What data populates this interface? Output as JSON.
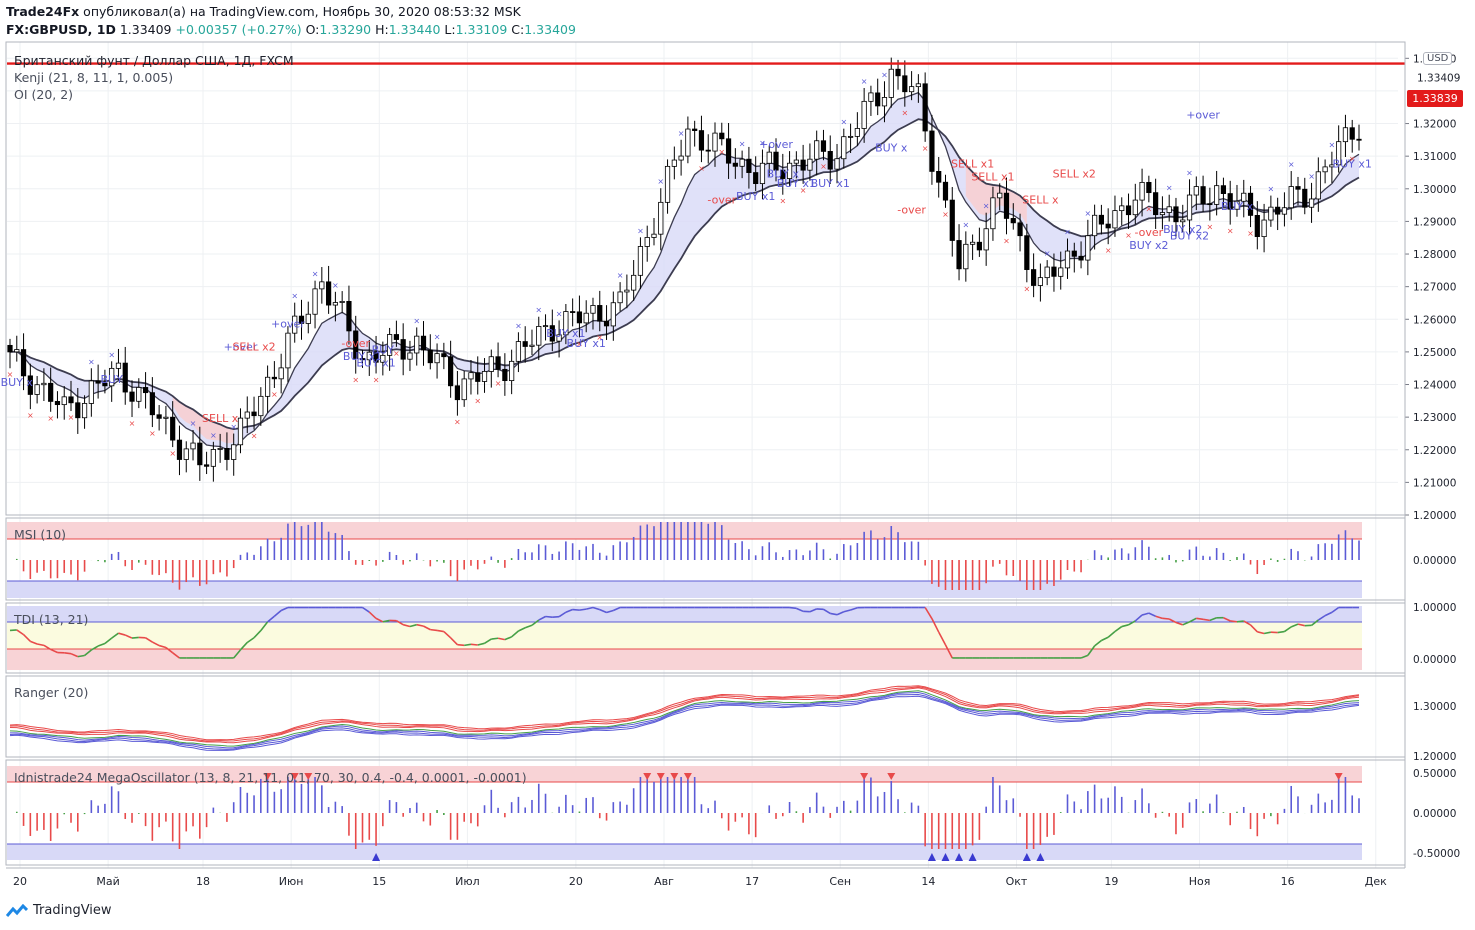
{
  "header": {
    "author": "Trade24Fx",
    "published_text": "опубликовал(а) на TradingView.com, Ноябрь 30, 2020 08:53:32 MSK",
    "symbol": "FX:GBPUSD, 1D",
    "last": "1.33409",
    "change": "+0.00357 (+0.27%)",
    "o_label": "O:",
    "o": "1.33290",
    "h_label": "H:",
    "h": "1.33440",
    "l_label": "L:",
    "l": "1.33109",
    "c_label": "C:",
    "c": "1.33409"
  },
  "legend": {
    "main_title": "Британский фунт / Доллар США, 1Д, FXCM",
    "ind1": "Kenji (21, 8, 11, 1, 0.005)",
    "ind2": "OI (20, 2)"
  },
  "currency_button": "USD",
  "horizontal_line_price": "1.33839",
  "current_price": "1.33409",
  "colors": {
    "up_candle": "#ffffff",
    "down_candle": "#000000",
    "hline": "#e31b1b",
    "blue": "#5b5bd6",
    "red": "#e84a4a",
    "green": "#46a046"
  },
  "x_axis_labels": [
    "20",
    "Май",
    "18",
    "Июн",
    "15",
    "Июл",
    "20",
    "Авг",
    "17",
    "Сен",
    "14",
    "Окт",
    "19",
    "Ноя",
    "16",
    "Дек"
  ],
  "price_axis": {
    "main_ticks": [
      "1.34000",
      "1.32000",
      "1.31000",
      "1.30000",
      "1.29000",
      "1.28000",
      "1.27000",
      "1.26000",
      "1.25000",
      "1.24000",
      "1.23000",
      "1.22000",
      "1.21000",
      "1.20000"
    ],
    "main_range": [
      1.2,
      1.345
    ]
  },
  "panels": {
    "msi": {
      "title": "MSI (10)",
      "ticks": [
        "0.00000"
      ]
    },
    "tdi": {
      "title": "TDI (13, 21)",
      "ticks": [
        "1.00000",
        "0.00000"
      ]
    },
    "ranger": {
      "title": "Ranger (20)",
      "ticks": [
        "1.30000",
        "1.20000"
      ]
    },
    "mega": {
      "title": "Idnistrade24 MegaOscillator (13, 8, 21, 11, 0.1, 70, 30, 0.4, -0.4, 0.0001, -0.0001)",
      "ticks": [
        "0.50000",
        "0.00000",
        "-0.50000"
      ]
    }
  },
  "signal_labels": [
    {
      "text": "BUY x",
      "bar": 1,
      "price": 1.2395
    },
    {
      "text": "BUY",
      "bar": 15,
      "price": 1.2405
    },
    {
      "text": "+over",
      "bar": 34,
      "price": 1.2505
    },
    {
      "text": "SELL x2",
      "bar": 36,
      "price": 1.2505
    },
    {
      "text": "SELL x",
      "bar": 31,
      "price": 1.2285
    },
    {
      "text": "+over",
      "bar": 41,
      "price": 1.2575
    },
    {
      "text": "-over",
      "bar": 51,
      "price": 1.2515
    },
    {
      "text": "BUY x1",
      "bar": 52,
      "price": 1.2475
    },
    {
      "text": "BUY x1",
      "bar": 54,
      "price": 1.2455
    },
    {
      "text": "BUY",
      "bar": 55,
      "price": 1.2495
    },
    {
      "text": "BUY x1",
      "bar": 82,
      "price": 1.2545
    },
    {
      "text": "BUY x1",
      "bar": 85,
      "price": 1.2515
    },
    {
      "text": "+over",
      "bar": 113,
      "price": 1.3125
    },
    {
      "text": "-over",
      "bar": 105,
      "price": 1.2955
    },
    {
      "text": "BUY x1",
      "bar": 110,
      "price": 1.2965
    },
    {
      "text": "BUY x",
      "bar": 114,
      "price": 1.3035
    },
    {
      "text": "BUY x1",
      "bar": 116,
      "price": 1.3005
    },
    {
      "text": "BUY x1",
      "bar": 121,
      "price": 1.3005
    },
    {
      "text": "BUY x",
      "bar": 130,
      "price": 1.3115
    },
    {
      "text": "-over",
      "bar": 133,
      "price": 1.2925
    },
    {
      "text": "SELL x1",
      "bar": 142,
      "price": 1.3065
    },
    {
      "text": "SELL x1",
      "bar": 145,
      "price": 1.3025
    },
    {
      "text": "SELL x",
      "bar": 152,
      "price": 1.2955
    },
    {
      "text": "SELL x2",
      "bar": 157,
      "price": 1.3035
    },
    {
      "text": "-over",
      "bar": 168,
      "price": 1.2855
    },
    {
      "text": "BUY x2",
      "bar": 168,
      "price": 1.2815
    },
    {
      "text": "BUY x2",
      "bar": 174,
      "price": 1.2845
    },
    {
      "text": "BUY x2",
      "bar": 173,
      "price": 1.2865
    },
    {
      "text": "+over",
      "bar": 176,
      "price": 1.3215
    },
    {
      "text": "BUY x",
      "bar": 181,
      "price": 1.2935
    },
    {
      "text": "BUY x1",
      "bar": 198,
      "price": 1.3065
    }
  ]
}
